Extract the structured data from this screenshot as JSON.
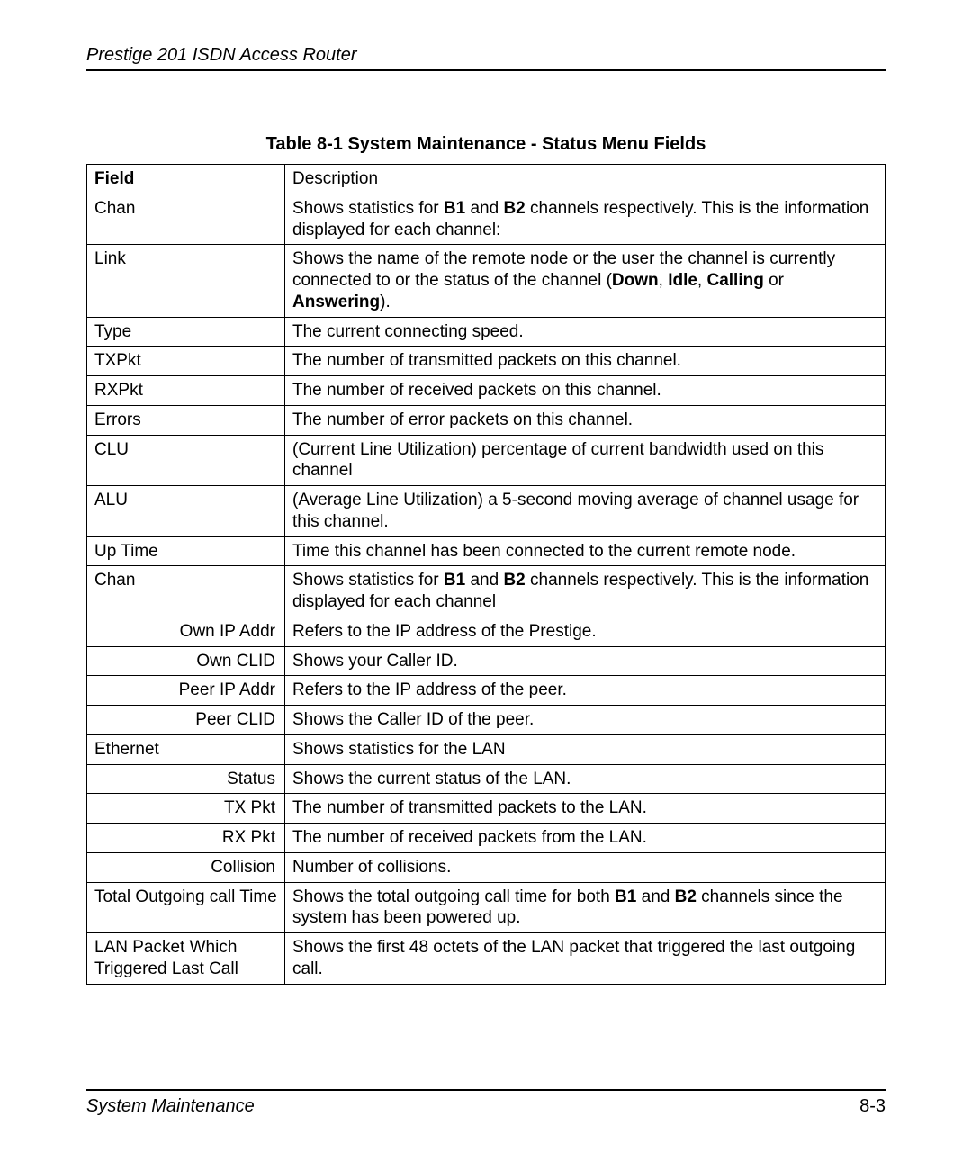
{
  "header_title": "Prestige 201 ISDN Access Router",
  "table_caption": "Table 8-1 System Maintenance - Status Menu Fields",
  "column_header_field": "Field",
  "column_header_desc": "Description",
  "rows": [
    {
      "field": "Chan",
      "sub": false,
      "desc_parts": [
        "Shows statistics for ",
        {
          "b": "B1"
        },
        " and ",
        {
          "b": "B2"
        },
        " channels respectively. This is the information displayed for each channel:"
      ]
    },
    {
      "field": "Link",
      "sub": false,
      "desc_parts": [
        "Shows the name of the remote node or the user the channel is currently connected to or the status of the channel (",
        {
          "b": "Down"
        },
        ", ",
        {
          "b": "Idle"
        },
        ", ",
        {
          "b": "Calling"
        },
        " or ",
        {
          "b": "Answering"
        },
        ")."
      ]
    },
    {
      "field": "Type",
      "sub": false,
      "desc_parts": [
        "The current connecting speed."
      ]
    },
    {
      "field": "TXPkt",
      "sub": false,
      "desc_parts": [
        "The number of transmitted packets on this channel."
      ]
    },
    {
      "field": "RXPkt",
      "sub": false,
      "desc_parts": [
        "The number of received packets on this channel."
      ]
    },
    {
      "field": "Errors",
      "sub": false,
      "desc_parts": [
        "The number of error packets on this channel."
      ]
    },
    {
      "field": "CLU",
      "sub": false,
      "desc_parts": [
        "(Current Line Utilization) percentage of current bandwidth used on this channel"
      ]
    },
    {
      "field": "ALU",
      "sub": false,
      "desc_parts": [
        "(Average Line Utilization) a 5-second moving average of channel usage for this channel."
      ]
    },
    {
      "field": "Up Time",
      "sub": false,
      "desc_parts": [
        "Time this channel has been connected to the current remote node."
      ]
    },
    {
      "field": "Chan",
      "sub": false,
      "desc_parts": [
        "Shows statistics for ",
        {
          "b": "B1"
        },
        " and ",
        {
          "b": "B2"
        },
        " channels respectively. This is the information displayed for each channel"
      ]
    },
    {
      "field": "Own IP Addr",
      "sub": true,
      "desc_parts": [
        "Refers to the IP address of the Prestige."
      ]
    },
    {
      "field": "Own CLID",
      "sub": true,
      "desc_parts": [
        "Shows your Caller ID."
      ]
    },
    {
      "field": "Peer IP Addr",
      "sub": true,
      "desc_parts": [
        "Refers to the IP address of the peer."
      ]
    },
    {
      "field": "Peer CLID",
      "sub": true,
      "desc_parts": [
        "Shows the Caller ID of the peer."
      ]
    },
    {
      "field": "Ethernet",
      "sub": false,
      "desc_parts": [
        "Shows statistics for the LAN"
      ]
    },
    {
      "field": "Status",
      "sub": true,
      "desc_parts": [
        "Shows the current status of the LAN."
      ]
    },
    {
      "field": "TX Pkt",
      "sub": true,
      "desc_parts": [
        "The number of transmitted packets to the LAN."
      ]
    },
    {
      "field": "RX Pkt",
      "sub": true,
      "desc_parts": [
        "The number of received packets from the LAN."
      ]
    },
    {
      "field": "Collision",
      "sub": true,
      "desc_parts": [
        "Number of collisions."
      ]
    },
    {
      "field": "Total Outgoing call Time",
      "sub": false,
      "desc_parts": [
        "Shows the total outgoing call time for both ",
        {
          "b": "B1"
        },
        " and ",
        {
          "b": "B2"
        },
        " channels since the system has been powered up."
      ]
    },
    {
      "field": "LAN Packet Which Triggered Last Call",
      "sub": false,
      "desc_parts": [
        "Shows the first 48 octets of the LAN packet that triggered the last outgoing call."
      ]
    }
  ],
  "footer_left": "System Maintenance",
  "footer_right": "8-3",
  "colors": {
    "text": "#000000",
    "background": "#ffffff",
    "border": "#000000"
  }
}
